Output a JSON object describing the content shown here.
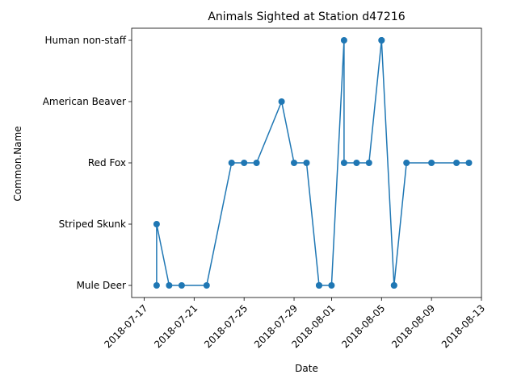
{
  "chart_data": {
    "type": "line",
    "title": "Animals Sighted at Station d47216",
    "xlabel": "Date",
    "ylabel": "Common.Name",
    "categories": [
      "Mule Deer",
      "Striped Skunk",
      "Red Fox",
      "American Beaver",
      "Human non-staff"
    ],
    "x_ticks": [
      "2018-07-17",
      "2018-07-21",
      "2018-07-25",
      "2018-07-29",
      "2018-08-01",
      "2018-08-05",
      "2018-08-09",
      "2018-08-13"
    ],
    "xlim": [
      "2018-07-16",
      "2018-08-13"
    ],
    "grid": false,
    "color": "#1f77b4",
    "series": [
      {
        "x": [
          "2018-07-18",
          "2018-07-18",
          "2018-07-19",
          "2018-07-20",
          "2018-07-22",
          "2018-07-24",
          "2018-07-25",
          "2018-07-26",
          "2018-07-28",
          "2018-07-29",
          "2018-07-30",
          "2018-07-31",
          "2018-07-31",
          "2018-08-01",
          "2018-08-02",
          "2018-08-02",
          "2018-08-03",
          "2018-08-04",
          "2018-08-05",
          "2018-08-05",
          "2018-08-06",
          "2018-08-06",
          "2018-08-07",
          "2018-08-09",
          "2018-08-11",
          "2018-08-12"
        ],
        "y": [
          "Mule Deer",
          "Striped Skunk",
          "Mule Deer",
          "Mule Deer",
          "Mule Deer",
          "Red Fox",
          "Red Fox",
          "Red Fox",
          "American Beaver",
          "Red Fox",
          "Red Fox",
          "Mule Deer",
          "Mule Deer",
          "Mule Deer",
          "Human non-staff",
          "Red Fox",
          "Red Fox",
          "Red Fox",
          "Human non-staff",
          "Human non-staff",
          "Mule Deer",
          "Mule Deer",
          "Red Fox",
          "Red Fox",
          "Red Fox",
          "Red Fox"
        ]
      }
    ]
  }
}
